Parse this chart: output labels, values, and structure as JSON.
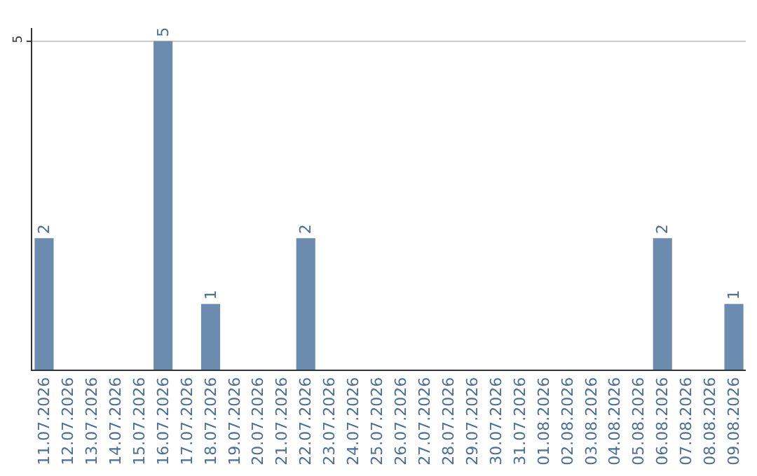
{
  "chart_data": {
    "type": "bar",
    "categories": [
      "11.07.2026",
      "12.07.2026",
      "13.07.2026",
      "14.07.2026",
      "15.07.2026",
      "16.07.2026",
      "17.07.2026",
      "18.07.2026",
      "19.07.2026",
      "20.07.2026",
      "21.07.2026",
      "22.07.2026",
      "23.07.2026",
      "24.07.2026",
      "25.07.2026",
      "26.07.2026",
      "27.07.2026",
      "28.07.2026",
      "29.07.2026",
      "30.07.2026",
      "31.07.2026",
      "01.08.2026",
      "02.08.2026",
      "03.08.2026",
      "04.08.2026",
      "05.08.2026",
      "06.08.2026",
      "07.08.2026",
      "08.08.2026",
      "09.08.2026"
    ],
    "values": [
      2,
      0,
      0,
      0,
      0,
      5,
      0,
      1,
      0,
      0,
      0,
      2,
      0,
      0,
      0,
      0,
      0,
      0,
      0,
      0,
      0,
      0,
      0,
      0,
      0,
      0,
      2,
      0,
      0,
      1
    ],
    "value_labels": [
      "2",
      null,
      null,
      null,
      null,
      "5",
      null,
      "1",
      null,
      null,
      null,
      "2",
      null,
      null,
      null,
      null,
      null,
      null,
      null,
      null,
      null,
      null,
      null,
      null,
      null,
      null,
      "2",
      null,
      null,
      "1"
    ],
    "color": "#6b8cae",
    "ylim": [
      0,
      5.2
    ],
    "yticks": [
      5
    ],
    "grid": "y",
    "legend": false
  }
}
